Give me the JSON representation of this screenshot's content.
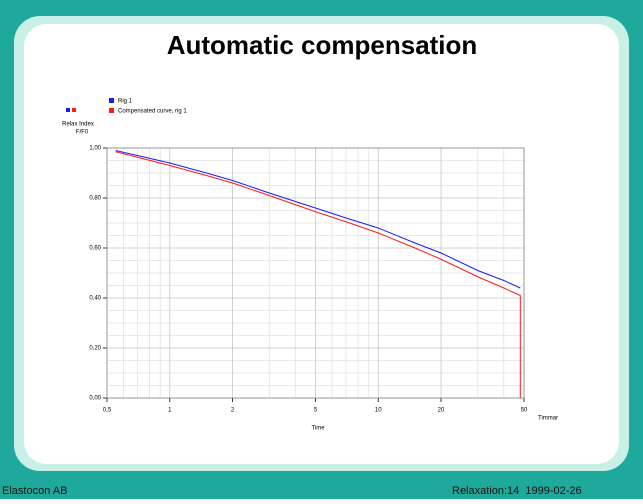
{
  "chart_data": {
    "type": "line",
    "title": "Automatic compensation",
    "ylabel": [
      "Relax Index",
      "F/F0"
    ],
    "xlabel": "Time",
    "xunit": "Timmar",
    "xscale": "log",
    "xlim": [
      0.5,
      50
    ],
    "ylim": [
      0,
      1
    ],
    "xticks": [
      {
        "value": 0.5,
        "label": "0,5"
      },
      1,
      2,
      5,
      10,
      20,
      50
    ],
    "yticks": [
      {
        "value": 0,
        "label": "0,00"
      },
      {
        "value": 0.2,
        "label": "0,20"
      },
      {
        "value": 0.4,
        "label": "0,40"
      },
      {
        "value": 0.6,
        "label": "0,60"
      },
      {
        "value": 0.8,
        "label": "0,80"
      },
      {
        "value": 1,
        "label": "1,00"
      }
    ],
    "xminorticks": [
      0.6,
      0.7,
      0.8,
      0.9,
      3,
      4,
      6,
      7,
      8,
      9,
      30,
      40
    ],
    "yminorticks": [
      0.05,
      0.1,
      0.15,
      0.25,
      0.3,
      0.35,
      0.45,
      0.5,
      0.55,
      0.65,
      0.7,
      0.75,
      0.85,
      0.9,
      0.95
    ],
    "grid": true,
    "legend": "top-left",
    "series": [
      {
        "name": "Rig 1",
        "color": "#1a1aff",
        "x": [
          0.55,
          0.7,
          1,
          1.5,
          2,
          3,
          5,
          7,
          10,
          15,
          20,
          30,
          40,
          48
        ],
        "values": [
          0.99,
          0.97,
          0.94,
          0.9,
          0.87,
          0.82,
          0.76,
          0.72,
          0.68,
          0.62,
          0.58,
          0.51,
          0.47,
          0.44
        ]
      },
      {
        "name": "Compensated curve, rig 1",
        "color": "#ff1a1a",
        "x": [
          0.55,
          0.7,
          1,
          1.5,
          2,
          3,
          5,
          7,
          10,
          15,
          20,
          30,
          40,
          48,
          48
        ],
        "values": [
          0.985,
          0.963,
          0.93,
          0.89,
          0.86,
          0.81,
          0.745,
          0.705,
          0.66,
          0.6,
          0.555,
          0.485,
          0.44,
          0.41,
          0
        ]
      }
    ]
  },
  "footer": {
    "left": "Elastocon AB",
    "right": "Relaxation:14  1999-02-26"
  }
}
